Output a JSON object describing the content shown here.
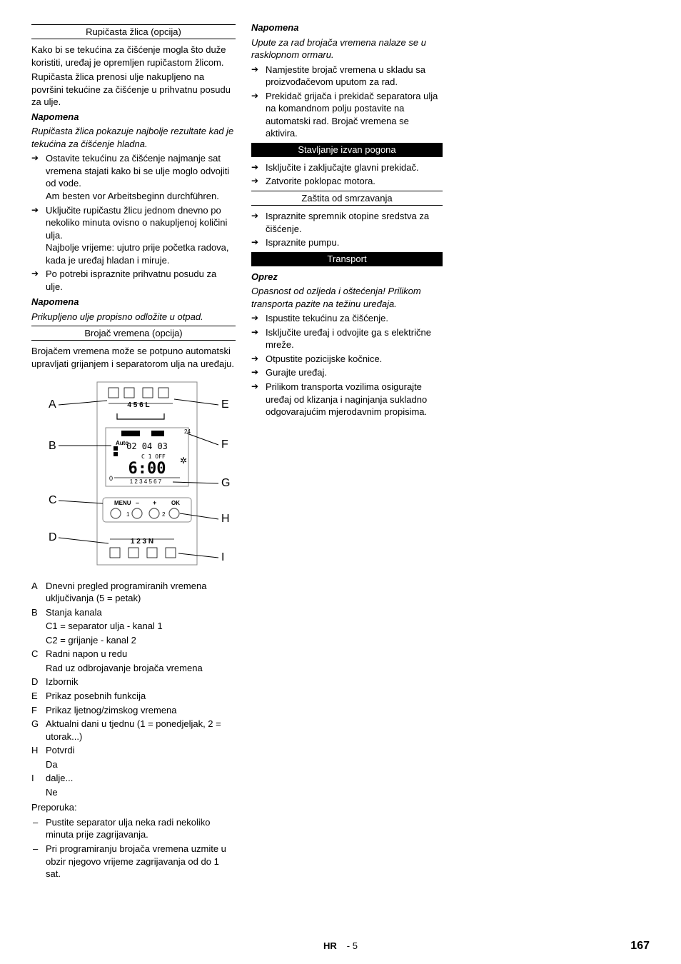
{
  "col1": {
    "sec1_title": "Rupičasta žlica (opcija)",
    "p1": "Kako bi se tekućina za čišćenje mogla što duže koristiti, uređaj je opremljen rupičastom žlicom.",
    "p2": "Rupičasta žlica prenosi ulje nakupljeno na površini tekućine za čišćenje u prihvatnu posudu za ulje.",
    "note1_h": "Napomena",
    "note1_b": "Rupičasta žlica pokazuje najbolje rezultate kad je tekućina za čišćenje hladna.",
    "b1": "Ostavite tekućinu za čišćenje najmanje sat vremena stajati kako bi se ulje moglo odvojiti od vode.",
    "b1b": "Am besten vor Arbeitsbeginn durchführen.",
    "b2": "Uključite rupičastu žlicu jednom dnevno po nekoliko minuta ovisno o nakupljenoj količini ulja.",
    "b2b": "Najbolje vrijeme: ujutro prije početka radova, kada je uređaj hladan i miruje.",
    "b3": "Po potrebi ispraznite prihvatnu posudu za ulje.",
    "note2_h": "Napomena",
    "note2_b": "Prikupljeno ulje propisno odložite u otpad.",
    "sec2_title": "Brojač vremena (opcija)",
    "p3": "Brojačem vremena može se potpuno automatski upravljati grijanjem i separatorom ulja na uređaju.",
    "defs": [
      {
        "k": "A",
        "v": "Dnevni pregled programiranih vremena uključivanja (5 = petak)"
      },
      {
        "k": "B",
        "v": "Stanja kanala"
      },
      {
        "k": "",
        "v": "C1 =  separator ulja - kanal 1"
      },
      {
        "k": "",
        "v": "C2 = grijanje - kanal 2"
      },
      {
        "k": "C",
        "v": "Radni napon u redu"
      },
      {
        "k": "",
        "v": "Rad uz odbrojavanje brojača vremena"
      },
      {
        "k": "D",
        "v": "Izbornik"
      },
      {
        "k": "E",
        "v": "Prikaz posebnih funkcija"
      },
      {
        "k": "F",
        "v": "Prikaz ljetnog/zimskog vremena"
      },
      {
        "k": "G",
        "v": "Aktualni dani u tjednu (1 = ponedjeljak, 2 = utorak...)"
      },
      {
        "k": "H",
        "v": "Potvrdi"
      },
      {
        "k": "",
        "v": "Da"
      },
      {
        "k": "I",
        "v": "dalje..."
      },
      {
        "k": "",
        "v": "Ne"
      }
    ],
    "prep": "Preporuka:",
    "d1": "Pustite separator ulja neka radi nekoliko minuta prije zagrijavanja.",
    "d2": "Pri programiranju brojača vremena uzmite u obzir njegovo vrijeme zagrijavanja od do 1 sat."
  },
  "col2": {
    "note_h": "Napomena",
    "note_b": "Upute za rad brojača vremena nalaze se u rasklopnom ormaru.",
    "a1": "Namjestite brojač vremena u skladu sa proizvođačevom uputom za rad.",
    "a2": "Prekidač grijača i prekidač separatora ulja na komandnom polju postavite na automatski rad. Brojač vremena se aktivira.",
    "sec1": "Stavljanje izvan pogona",
    "s1a": "Isključite i zaključajte glavni prekidač.",
    "s1b": "Zatvorite poklopac motora.",
    "sub1": "Zaštita od smrzavanja",
    "z1": "Ispraznite spremnik otopine sredstva za čišćenje.",
    "z2": "Ispraznite pumpu.",
    "sec2": "Transport",
    "oprez_h": "Oprez",
    "oprez_b": "Opasnost od ozljeda i oštećenja! Prilikom transporta pazite na težinu uređaja.",
    "t1": "Ispustite tekućinu za čišćenje.",
    "t2": "Isključite uređaj i odvojite ga s električne mreže.",
    "t3": "Otpustite pozicijske kočnice.",
    "t4": "Gurajte uređaj.",
    "t5": "Prilikom transporta vozilima osigurajte uređaj od klizanja i naginjanja sukladno odgovarajućim mjerodavnim propisima."
  },
  "footer": {
    "lang": "HR",
    "mid": "- 5",
    "pg": "167"
  },
  "fig": {
    "labels_left": [
      "A",
      "B",
      "C",
      "D"
    ],
    "labels_right": [
      "E",
      "F",
      "G",
      "H",
      "I"
    ],
    "disp_top": "4  5  6  L",
    "disp_time": "6:00",
    "disp_02": "02 04 03",
    "disp_auto": "Auto",
    "disp_off": "C 1 OFF",
    "disp_days": "1 2 3 4 5 6 7",
    "disp_24": "24",
    "menu": "MENU",
    "minus": "–",
    "plus": "+",
    "ok": "OK",
    "bot": "1   2   3   N"
  }
}
